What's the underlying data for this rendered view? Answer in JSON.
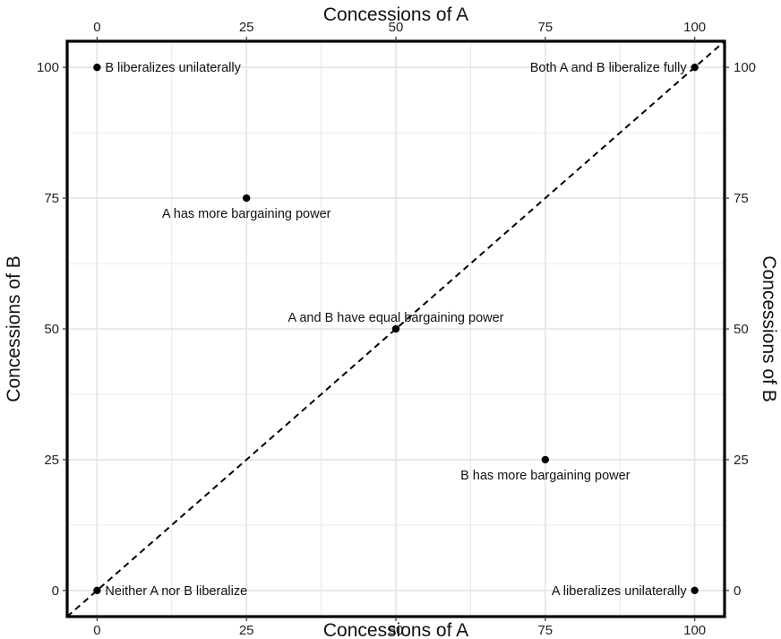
{
  "chart_data": {
    "type": "scatter",
    "x_axis": {
      "label": "Concessions of A",
      "range": [
        -5,
        105
      ],
      "ticks": [
        0,
        25,
        50,
        75,
        100
      ],
      "tick_labels": [
        "0",
        "25",
        "50",
        "75",
        "100"
      ]
    },
    "y_axis": {
      "label": "Concessions of B",
      "range": [
        -5,
        105
      ],
      "ticks": [
        0,
        25,
        50,
        75,
        100
      ],
      "tick_labels": [
        "0",
        "25",
        "50",
        "75",
        "100"
      ]
    },
    "grid": true,
    "reference_line": {
      "style": "dashed",
      "from": [
        -5,
        -5
      ],
      "to": [
        105,
        105
      ]
    },
    "points": [
      {
        "x": 0,
        "y": 100,
        "label": "B liberalizes unilaterally",
        "label_side": "right"
      },
      {
        "x": 100,
        "y": 100,
        "label": "Both A and B liberalize fully",
        "label_side": "left"
      },
      {
        "x": 25,
        "y": 75,
        "label": "A has more bargaining power",
        "label_side": "below"
      },
      {
        "x": 50,
        "y": 50,
        "label": "A and B have equal bargaining power",
        "label_side": "above"
      },
      {
        "x": 75,
        "y": 25,
        "label": "B has more bargaining power",
        "label_side": "below"
      },
      {
        "x": 0,
        "y": 0,
        "label": "Neither A nor B liberalize",
        "label_side": "right"
      },
      {
        "x": 100,
        "y": 0,
        "label": "A liberalizes unilaterally",
        "label_side": "left"
      }
    ],
    "colors": {
      "point": "#000000",
      "grid": "#e4e4e4",
      "frame": "#000000"
    }
  }
}
